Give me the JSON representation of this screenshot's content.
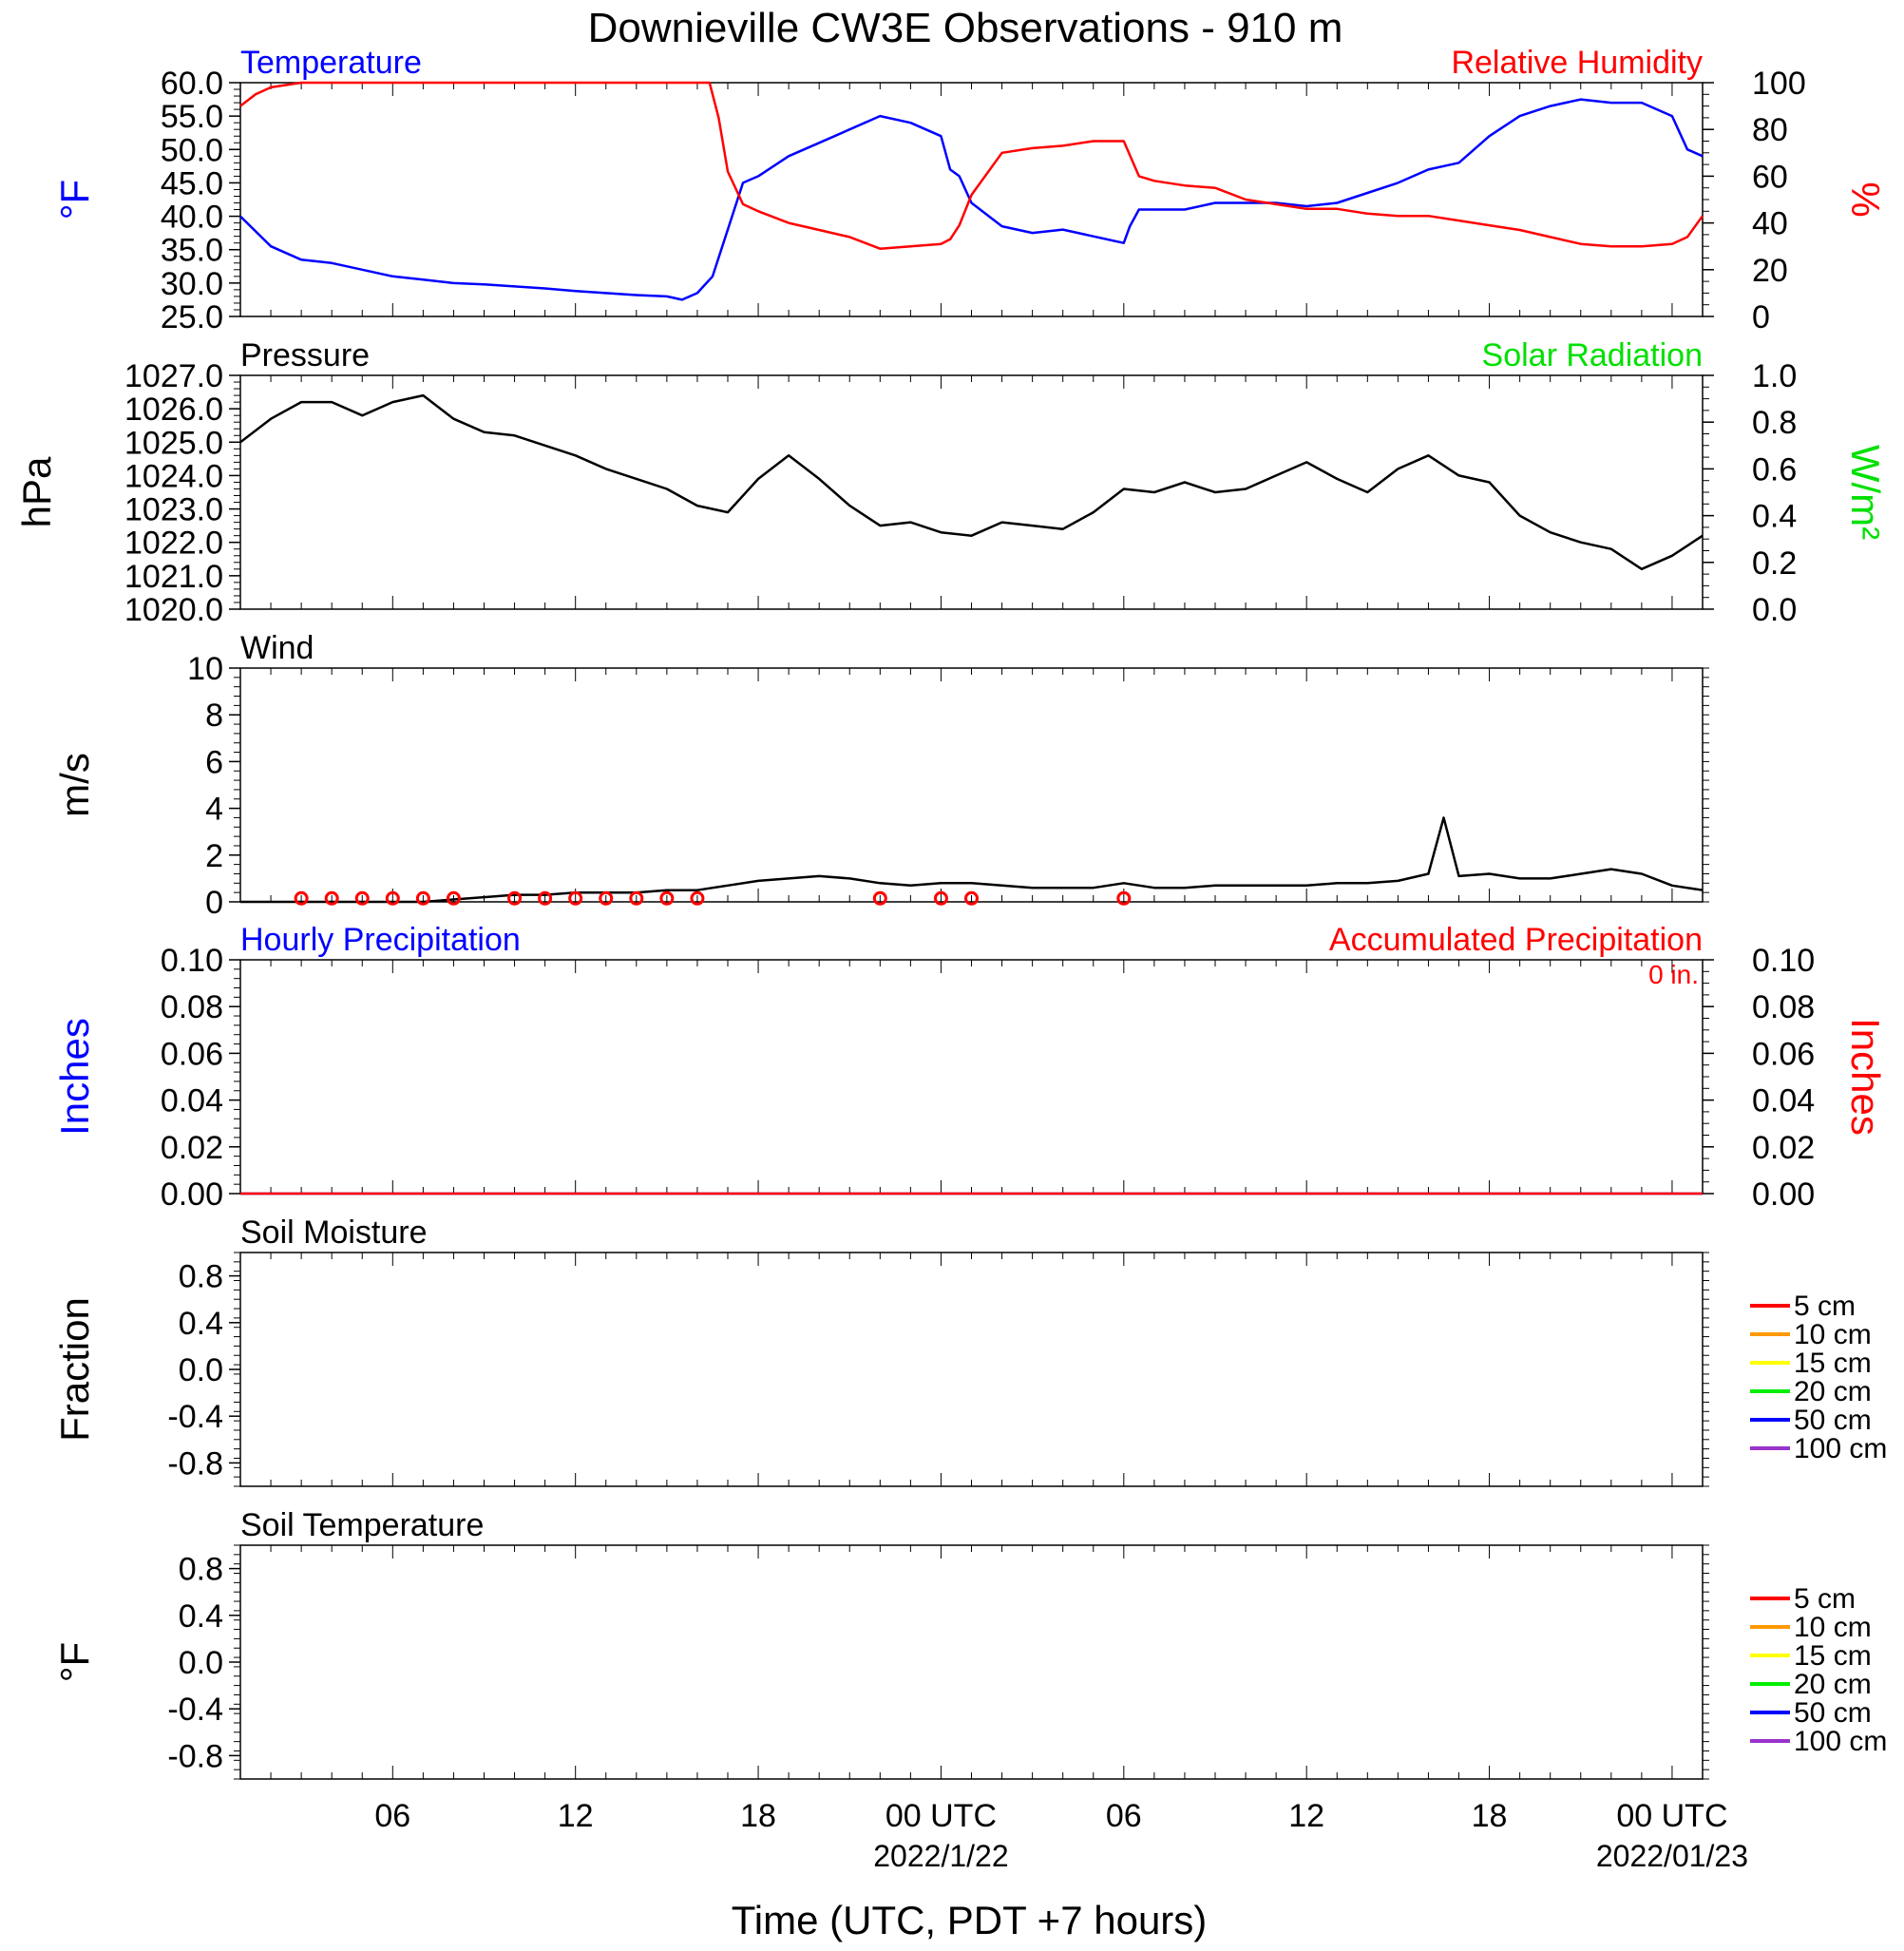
{
  "title": "Downieville CW3E Observations - 910 m",
  "xlabel": "Time (UTC, PDT +7 hours)",
  "x_ticks": [
    {
      "h": 6,
      "label": "06",
      "date": ""
    },
    {
      "h": 12,
      "label": "12",
      "date": ""
    },
    {
      "h": 18,
      "label": "18",
      "date": ""
    },
    {
      "h": 24,
      "label": "00 UTC",
      "date": "2022/1/22"
    },
    {
      "h": 30,
      "label": "06",
      "date": ""
    },
    {
      "h": 36,
      "label": "12",
      "date": ""
    },
    {
      "h": 42,
      "label": "18",
      "date": ""
    },
    {
      "h": 48,
      "label": "00 UTC",
      "date": "2022/01/23"
    }
  ],
  "colors": {
    "temperature": "#0000ff",
    "humidity": "#ff0000",
    "solar": "#00e000",
    "black": "#000000"
  },
  "chart_data": [
    {
      "type": "line",
      "panel": "temperature-humidity",
      "x_range_hours": [
        1,
        49
      ],
      "left": {
        "label": "Temperature",
        "unit": "°F",
        "ylim": [
          25,
          60
        ],
        "ticks": [
          "25.0",
          "30.0",
          "35.0",
          "40.0",
          "45.0",
          "50.0",
          "55.0",
          "60.0"
        ]
      },
      "right": {
        "label": "Relative Humidity",
        "unit": "%",
        "ylim": [
          0,
          100
        ],
        "ticks": [
          "0",
          "20",
          "40",
          "60",
          "80",
          "100"
        ]
      },
      "series": [
        {
          "name": "Temperature",
          "axis": "left",
          "color": "#0000ff",
          "x": [
            1,
            2,
            3,
            4,
            5,
            6,
            7,
            8,
            9,
            10,
            11,
            12,
            13,
            14,
            15,
            15.5,
            16,
            16.5,
            17,
            17.5,
            18,
            19,
            20,
            21,
            22,
            23,
            24,
            24.3,
            24.6,
            25,
            26,
            27,
            28,
            29,
            30,
            30.2,
            30.5,
            31,
            32,
            33,
            34,
            35,
            36,
            37,
            38,
            39,
            40,
            41,
            42,
            43,
            44,
            45,
            46,
            47,
            48,
            48.5,
            49
          ],
          "y": [
            40,
            35.5,
            33.5,
            33,
            32,
            31,
            30.5,
            30,
            29.8,
            29.5,
            29.2,
            28.8,
            28.5,
            28.2,
            28,
            27.5,
            28.5,
            31,
            38,
            45,
            46,
            49,
            51,
            53,
            55,
            54,
            52,
            47,
            46,
            42,
            38.5,
            37.5,
            38,
            37,
            36,
            38.5,
            41,
            41,
            41,
            42,
            42,
            42,
            41.5,
            42,
            43.5,
            45,
            47,
            48,
            52,
            55,
            56.5,
            57.5,
            57,
            57,
            55,
            50,
            49
          ]
        },
        {
          "name": "Relative Humidity",
          "axis": "right",
          "color": "#ff0000",
          "x": [
            1,
            1.5,
            2,
            3,
            4,
            5,
            6,
            7,
            8,
            9,
            10,
            11,
            12,
            13,
            14,
            15,
            16,
            16.4,
            16.7,
            17,
            17.5,
            18,
            19,
            20,
            21,
            22,
            23,
            24,
            24.3,
            24.6,
            25,
            26,
            27,
            28,
            29,
            30,
            30.5,
            31,
            32,
            33,
            34,
            35,
            36,
            37,
            38,
            39,
            40,
            41,
            42,
            43,
            44,
            45,
            46,
            47,
            48,
            48.5,
            49
          ],
          "y": [
            90,
            95,
            98,
            100,
            100,
            100,
            100,
            100,
            100,
            100,
            100,
            100,
            100,
            100,
            100,
            100,
            100,
            100,
            85,
            62,
            48,
            45,
            40,
            37,
            34,
            29,
            30,
            31,
            33,
            39,
            52,
            70,
            72,
            73,
            75,
            75,
            60,
            58,
            56,
            55,
            50,
            48,
            46,
            46,
            44,
            43,
            43,
            41,
            39,
            37,
            34,
            31,
            30,
            30,
            31,
            34,
            43
          ]
        }
      ]
    },
    {
      "type": "line",
      "panel": "pressure",
      "x_range_hours": [
        1,
        49
      ],
      "left": {
        "label": "Pressure",
        "unit": "hPa",
        "ylim": [
          1020,
          1027
        ],
        "ticks": [
          "1020.0",
          "1021.0",
          "1022.0",
          "1023.0",
          "1024.0",
          "1025.0",
          "1026.0",
          "1027.0"
        ]
      },
      "right": {
        "label": "Solar Radiation",
        "unit": "W/m²",
        "ylim": [
          0,
          1
        ],
        "ticks": [
          "0.0",
          "0.2",
          "0.4",
          "0.6",
          "0.8",
          "1.0"
        ]
      },
      "series": [
        {
          "name": "Pressure",
          "axis": "left",
          "color": "#000000",
          "x": [
            1,
            2,
            3,
            4,
            5,
            6,
            7,
            8,
            9,
            10,
            11,
            12,
            13,
            14,
            15,
            16,
            17,
            18,
            19,
            20,
            21,
            22,
            23,
            24,
            25,
            26,
            27,
            28,
            29,
            30,
            31,
            32,
            33,
            34,
            35,
            36,
            37,
            38,
            39,
            40,
            41,
            42,
            43,
            44,
            45,
            46,
            47,
            48,
            49
          ],
          "y": [
            1025,
            1025.7,
            1026.2,
            1026.2,
            1025.8,
            1026.2,
            1026.4,
            1025.7,
            1025.3,
            1025.2,
            1024.9,
            1024.6,
            1024.2,
            1023.9,
            1023.6,
            1023.1,
            1022.9,
            1023.9,
            1024.6,
            1023.9,
            1023.1,
            1022.5,
            1022.6,
            1022.3,
            1022.2,
            1022.6,
            1022.5,
            1022.4,
            1022.9,
            1023.6,
            1023.5,
            1023.8,
            1023.5,
            1023.6,
            1024,
            1024.4,
            1023.9,
            1023.5,
            1024.2,
            1024.6,
            1024,
            1023.8,
            1022.8,
            1022.3,
            1022,
            1021.8,
            1021.2,
            1021.6,
            1022.2
          ]
        }
      ]
    },
    {
      "type": "line",
      "panel": "wind",
      "x_range_hours": [
        1,
        49
      ],
      "left": {
        "label": "Wind",
        "unit": "m/s",
        "ylim": [
          0,
          10
        ],
        "ticks": [
          "0",
          "2",
          "4",
          "6",
          "8",
          "10"
        ]
      },
      "series": [
        {
          "name": "Wind",
          "axis": "left",
          "color": "#000000",
          "x": [
            1,
            2,
            3,
            4,
            5,
            6,
            7,
            8,
            9,
            10,
            11,
            12,
            13,
            14,
            15,
            16,
            17,
            18,
            19,
            20,
            21,
            22,
            23,
            24,
            25,
            26,
            27,
            28,
            29,
            30,
            31,
            32,
            33,
            34,
            35,
            36,
            37,
            38,
            39,
            40,
            40.5,
            41,
            42,
            43,
            44,
            45,
            46,
            47,
            48,
            49
          ],
          "y": [
            0,
            0,
            0,
            0,
            0,
            0,
            0,
            0.1,
            0.2,
            0.3,
            0.3,
            0.4,
            0.4,
            0.4,
            0.5,
            0.5,
            0.7,
            0.9,
            1,
            1.1,
            1,
            0.8,
            0.7,
            0.8,
            0.8,
            0.7,
            0.6,
            0.6,
            0.6,
            0.8,
            0.6,
            0.6,
            0.7,
            0.7,
            0.7,
            0.7,
            0.8,
            0.8,
            0.9,
            1.2,
            3.6,
            1.1,
            1.2,
            1,
            1,
            1.2,
            1.4,
            1.2,
            0.7,
            0.5
          ]
        }
      ],
      "calm_hours": [
        3,
        4,
        5,
        6,
        7,
        8,
        10,
        11,
        12,
        13,
        14,
        15,
        16,
        22,
        24,
        25,
        30
      ]
    },
    {
      "type": "line",
      "panel": "precipitation",
      "x_range_hours": [
        1,
        49
      ],
      "left": {
        "label": "Hourly Precipitation",
        "unit": "Inches",
        "ylim": [
          0,
          0.1
        ],
        "ticks": [
          "0.00",
          "0.02",
          "0.04",
          "0.06",
          "0.08",
          "0.10"
        ]
      },
      "right": {
        "label": "Accumulated Precipitation",
        "unit": "Inches",
        "ylim": [
          0,
          0.1
        ],
        "ticks": [
          "0.00",
          "0.02",
          "0.04",
          "0.06",
          "0.08",
          "0.10"
        ]
      },
      "annotation": "0 in.",
      "series": [
        {
          "name": "Hourly Precipitation",
          "axis": "left",
          "color": "#0000ff",
          "x": [
            1,
            49
          ],
          "y": [
            0,
            0
          ]
        },
        {
          "name": "Accumulated Precipitation",
          "axis": "right",
          "color": "#ff0000",
          "x": [
            1,
            49
          ],
          "y": [
            0,
            0
          ]
        }
      ]
    },
    {
      "type": "line",
      "panel": "soil-moisture",
      "x_range_hours": [
        1,
        49
      ],
      "left": {
        "label": "Soil Moisture",
        "unit": "Fraction",
        "ylim": [
          -1,
          1
        ],
        "ticks": [
          "-0.8",
          "-0.4",
          "0.0",
          "0.4",
          "0.8"
        ]
      },
      "legend": [
        {
          "label": "5 cm",
          "color": "#ff0000"
        },
        {
          "label": "10 cm",
          "color": "#ff9900"
        },
        {
          "label": "15 cm",
          "color": "#ffff00"
        },
        {
          "label": "20 cm",
          "color": "#00ee00"
        },
        {
          "label": "50 cm",
          "color": "#0000ff"
        },
        {
          "label": "100 cm",
          "color": "#9933cc"
        }
      ],
      "series": []
    },
    {
      "type": "line",
      "panel": "soil-temperature",
      "x_range_hours": [
        1,
        49
      ],
      "left": {
        "label": "Soil Temperature",
        "unit": "°F",
        "ylim": [
          -1,
          1
        ],
        "ticks": [
          "-0.8",
          "-0.4",
          "0.0",
          "0.4",
          "0.8"
        ]
      },
      "legend": [
        {
          "label": "5 cm",
          "color": "#ff0000"
        },
        {
          "label": "10 cm",
          "color": "#ff9900"
        },
        {
          "label": "15 cm",
          "color": "#ffff00"
        },
        {
          "label": "20 cm",
          "color": "#00ee00"
        },
        {
          "label": "50 cm",
          "color": "#0000ff"
        },
        {
          "label": "100 cm",
          "color": "#9933cc"
        }
      ],
      "series": []
    }
  ]
}
